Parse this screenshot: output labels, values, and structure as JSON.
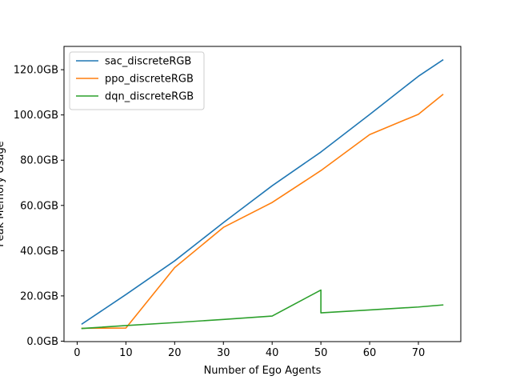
{
  "chart_data": {
    "type": "line",
    "title": "",
    "xlabel": "Number of Ego Agents",
    "ylabel": "Peak Memory Usage",
    "xlim": [
      -2.7,
      78.7
    ],
    "ylim": [
      -0.2,
      130.3
    ],
    "x_ticks": [
      0,
      10,
      20,
      30,
      40,
      50,
      60,
      70
    ],
    "y_ticks": [
      {
        "value": 0,
        "label": "0.0GB"
      },
      {
        "value": 20,
        "label": "20.0GB"
      },
      {
        "value": 40,
        "label": "40.0GB"
      },
      {
        "value": 60,
        "label": "60.0GB"
      },
      {
        "value": 80,
        "label": "80.0GB"
      },
      {
        "value": 100,
        "label": "100.0GB"
      },
      {
        "value": 120,
        "label": "120.0GB"
      }
    ],
    "grid": false,
    "legend_position": "top-left",
    "series": [
      {
        "name": "sac_discreteRGB",
        "color": "#1f77b4",
        "points": [
          [
            1,
            7.6
          ],
          [
            10,
            20.6
          ],
          [
            20,
            35.5
          ],
          [
            30,
            52.4
          ],
          [
            40,
            68.7
          ],
          [
            50,
            83.6
          ],
          [
            60,
            100.2
          ],
          [
            70,
            117.1
          ],
          [
            75,
            124.3
          ]
        ]
      },
      {
        "name": "ppo_discreteRGB",
        "color": "#ff7f0e",
        "points": [
          [
            1,
            5.7
          ],
          [
            10,
            5.8
          ],
          [
            20,
            32.5
          ],
          [
            30,
            50.3
          ],
          [
            40,
            61.3
          ],
          [
            50,
            75.4
          ],
          [
            60,
            91.3
          ],
          [
            70,
            100.3
          ],
          [
            75,
            109.0
          ]
        ]
      },
      {
        "name": "dqn_discreteRGB",
        "color": "#2ca02c",
        "points": [
          [
            1,
            5.6
          ],
          [
            10,
            6.9
          ],
          [
            20,
            8.2
          ],
          [
            30,
            9.6
          ],
          [
            40,
            11.1
          ],
          [
            50,
            22.6
          ],
          [
            50,
            12.5
          ],
          [
            60,
            13.8
          ],
          [
            70,
            15.1
          ],
          [
            75,
            16.0
          ]
        ]
      }
    ]
  }
}
